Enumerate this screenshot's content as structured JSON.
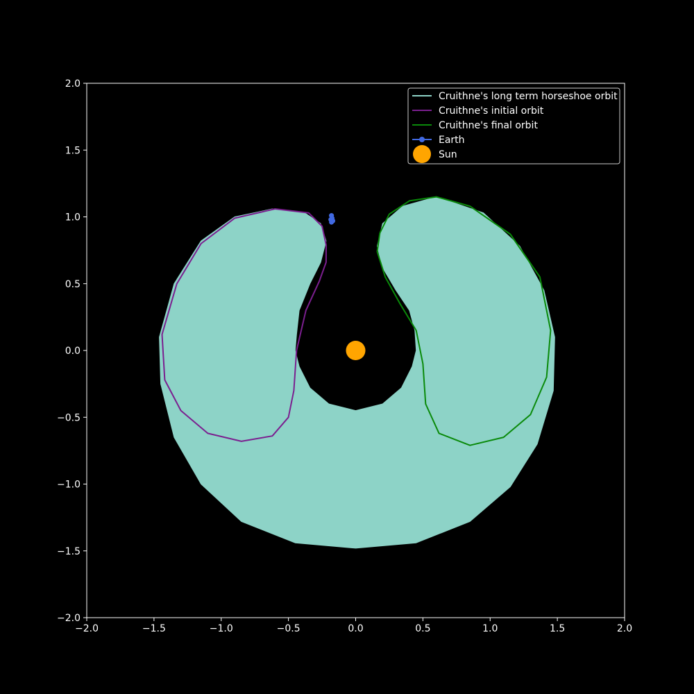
{
  "chart_data": {
    "type": "line",
    "title": "",
    "xlabel": "",
    "ylabel": "",
    "xlim": [
      -2.0,
      2.0
    ],
    "ylim": [
      -2.0,
      2.0
    ],
    "xticks": [
      "−2.0",
      "−1.5",
      "−1.0",
      "−0.5",
      "0.0",
      "0.5",
      "1.0",
      "1.5",
      "2.0"
    ],
    "yticks": [
      "−2.0",
      "−1.5",
      "−1.0",
      "−0.5",
      "0.0",
      "0.5",
      "1.0",
      "1.5",
      "2.0"
    ],
    "grid": false,
    "background": "#000000",
    "legend_position": "top-right",
    "series": [
      {
        "name": "Cruithne's long term horseshoe orbit",
        "color": "#8dd3c7",
        "kind": "filled-band",
        "outer": [
          [
            -0.62,
            1.06
          ],
          [
            -0.9,
            1.0
          ],
          [
            -1.15,
            0.82
          ],
          [
            -1.35,
            0.5
          ],
          [
            -1.46,
            0.1
          ],
          [
            -1.45,
            -0.25
          ],
          [
            -1.35,
            -0.65
          ],
          [
            -1.15,
            -1.0
          ],
          [
            -0.85,
            -1.28
          ],
          [
            -0.45,
            -1.44
          ],
          [
            0.0,
            -1.48
          ],
          [
            0.45,
            -1.44
          ],
          [
            0.85,
            -1.28
          ],
          [
            1.15,
            -1.02
          ],
          [
            1.35,
            -0.7
          ],
          [
            1.47,
            -0.3
          ],
          [
            1.48,
            0.1
          ],
          [
            1.4,
            0.45
          ],
          [
            1.22,
            0.78
          ],
          [
            0.95,
            1.03
          ],
          [
            0.6,
            1.15
          ],
          [
            0.35,
            1.08
          ],
          [
            0.2,
            0.95
          ],
          [
            0.16,
            0.78
          ],
          [
            0.2,
            0.62
          ],
          [
            0.3,
            0.45
          ],
          [
            0.4,
            0.3
          ],
          [
            0.44,
            0.15
          ],
          [
            0.45,
            0.0
          ],
          [
            0.42,
            -0.12
          ],
          [
            0.34,
            -0.28
          ],
          [
            0.2,
            -0.4
          ],
          [
            0.0,
            -0.45
          ],
          [
            -0.2,
            -0.4
          ],
          [
            -0.34,
            -0.28
          ],
          [
            -0.42,
            -0.12
          ],
          [
            -0.45,
            0.0
          ],
          [
            -0.44,
            0.12
          ],
          [
            -0.42,
            0.3
          ],
          [
            -0.34,
            0.5
          ],
          [
            -0.26,
            0.66
          ],
          [
            -0.22,
            0.82
          ],
          [
            -0.26,
            0.95
          ],
          [
            -0.38,
            1.03
          ],
          [
            -0.62,
            1.06
          ]
        ]
      },
      {
        "name": "Cruithne's initial orbit",
        "color": "#7b1f8f",
        "points": [
          [
            -0.22,
            0.79
          ],
          [
            -0.25,
            0.93
          ],
          [
            -0.35,
            1.03
          ],
          [
            -0.6,
            1.06
          ],
          [
            -0.9,
            0.99
          ],
          [
            -1.15,
            0.8
          ],
          [
            -1.33,
            0.5
          ],
          [
            -1.44,
            0.12
          ],
          [
            -1.42,
            -0.22
          ],
          [
            -1.3,
            -0.45
          ],
          [
            -1.1,
            -0.62
          ],
          [
            -0.85,
            -0.68
          ],
          [
            -0.62,
            -0.64
          ],
          [
            -0.5,
            -0.5
          ],
          [
            -0.46,
            -0.3
          ],
          [
            -0.44,
            0.0
          ],
          [
            -0.37,
            0.3
          ],
          [
            -0.27,
            0.52
          ],
          [
            -0.22,
            0.66
          ],
          [
            -0.22,
            0.79
          ]
        ]
      },
      {
        "name": "Cruithne's final orbit",
        "color": "#0a8a0a",
        "points": [
          [
            0.18,
            0.88
          ],
          [
            0.25,
            1.02
          ],
          [
            0.4,
            1.12
          ],
          [
            0.6,
            1.15
          ],
          [
            0.85,
            1.08
          ],
          [
            1.15,
            0.87
          ],
          [
            1.37,
            0.55
          ],
          [
            1.45,
            0.15
          ],
          [
            1.42,
            -0.2
          ],
          [
            1.3,
            -0.48
          ],
          [
            1.1,
            -0.65
          ],
          [
            0.85,
            -0.71
          ],
          [
            0.62,
            -0.62
          ],
          [
            0.52,
            -0.4
          ],
          [
            0.5,
            -0.1
          ],
          [
            0.45,
            0.15
          ],
          [
            0.33,
            0.35
          ],
          [
            0.22,
            0.55
          ],
          [
            0.16,
            0.74
          ],
          [
            0.18,
            0.88
          ]
        ]
      },
      {
        "name": "Earth",
        "color": "#4169e1",
        "marker": "circle",
        "points": [
          [
            -0.18,
            1.01
          ],
          [
            -0.175,
            0.99
          ],
          [
            -0.17,
            0.97
          ],
          [
            -0.18,
            0.96
          ],
          [
            -0.185,
            0.98
          ],
          [
            -0.18,
            1.01
          ]
        ]
      },
      {
        "name": "Sun",
        "color": "#ffa500",
        "marker": "large-circle",
        "points": [
          [
            0.0,
            0.0
          ]
        ]
      }
    ]
  }
}
